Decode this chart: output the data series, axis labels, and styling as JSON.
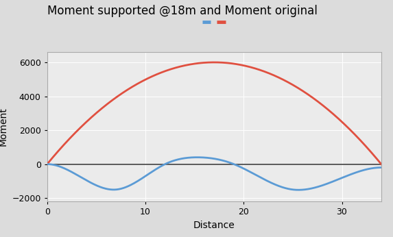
{
  "title": "Moment supported @18m and Moment original",
  "xlabel": "Distance",
  "ylabel": "Moment",
  "x_min": 0,
  "x_max": 34,
  "ylim": [
    -2200,
    6600
  ],
  "yticks": [
    -2000,
    0,
    2000,
    4000,
    6000
  ],
  "xticks": [
    0,
    10,
    20,
    30
  ],
  "red_color": "#E05040",
  "blue_color": "#5B9BD5",
  "bg_color": "#DCDCDC",
  "plot_bg": "#EBEBEB",
  "grid_color": "#FFFFFF",
  "zero_line_color": "#404040",
  "title_fontsize": 12,
  "axis_label_fontsize": 10,
  "tick_fontsize": 9,
  "line_width": 2.0,
  "red_peak": 6000,
  "blue_valley": -1500,
  "blue_peak": 400
}
